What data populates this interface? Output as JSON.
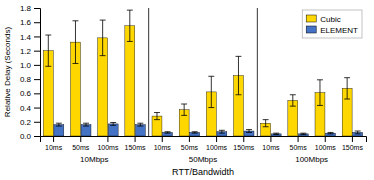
{
  "chart_data": {
    "type": "bar",
    "xlabel": "RTT/Bandwidth",
    "ylabel": "Relative Delay (Seconds)",
    "categories": [
      "10ms",
      "50ms",
      "100ms",
      "150ms",
      "10ms",
      "50ms",
      "100ms",
      "150ms",
      "10ms",
      "50ms",
      "100ms",
      "150ms"
    ],
    "groups": [
      "10Mbps",
      "50Mbps",
      "100Mbps"
    ],
    "series": [
      {
        "name": "Cubic",
        "color": "#FFD700",
        "values": [
          1.2,
          1.32,
          1.38,
          1.55,
          0.28,
          0.37,
          0.62,
          0.85,
          0.18,
          0.5,
          0.61,
          0.67
        ],
        "errors": [
          0.22,
          0.3,
          0.25,
          0.22,
          0.05,
          0.08,
          0.22,
          0.27,
          0.05,
          0.08,
          0.18,
          0.15
        ]
      },
      {
        "name": "ELEMENT",
        "color": "#4472C4",
        "values": [
          0.16,
          0.16,
          0.17,
          0.16,
          0.05,
          0.05,
          0.06,
          0.07,
          0.03,
          0.03,
          0.04,
          0.05
        ],
        "errors": [
          0.02,
          0.02,
          0.02,
          0.02,
          0.01,
          0.01,
          0.02,
          0.02,
          0.01,
          0.01,
          0.01,
          0.02
        ]
      }
    ],
    "ylim": [
      0,
      1.8
    ],
    "yticks": [
      {
        "value": 0,
        "label": "0.0"
      },
      0.2,
      0.4,
      0.6,
      0.8,
      {
        "value": 1,
        "label": "1.0"
      },
      1.2,
      1.4,
      1.6,
      1.8
    ],
    "grid": false,
    "legend": "upper right"
  }
}
